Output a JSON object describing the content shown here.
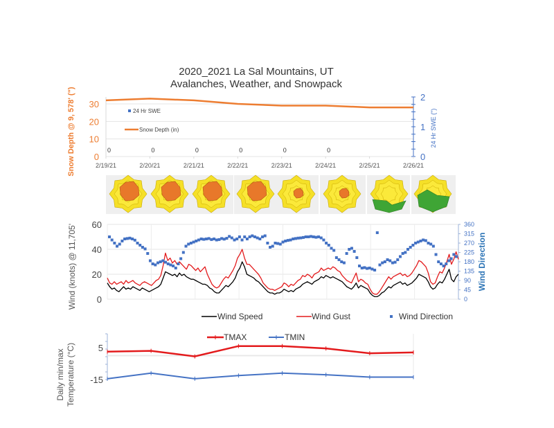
{
  "chart_data": [
    {
      "type": "line",
      "title": "2020_2021 La Sal Mountains, UT",
      "subtitle": "Avalanches, Weather, and Snowpack",
      "x": [
        "2/19/21",
        "2/20/21",
        "2/21/21",
        "2/22/21",
        "2/23/21",
        "2/24/21",
        "2/25/21",
        "2/26/21"
      ],
      "ylabel": "Snow Depth @ 9, 578' (\")",
      "y2label": "24 Hr SWE (\")",
      "ylim": [
        0,
        35
      ],
      "y2lim": [
        0,
        2
      ],
      "yticks": [
        0,
        10,
        20,
        30
      ],
      "y2ticks": [
        0,
        1,
        2
      ],
      "legend": [
        "24 Hr SWE",
        "Snow Depth (in)"
      ],
      "legend_position": "top-left",
      "series": [
        {
          "name": "Snow Depth (in)",
          "axis": "left",
          "color": "#ED7D31",
          "values": [
            32,
            33,
            32,
            30,
            29,
            29,
            28,
            28
          ]
        },
        {
          "name": "24 Hr SWE",
          "axis": "right",
          "color": "#4472C4",
          "values": [
            0,
            0,
            0,
            0,
            0,
            0,
            null,
            null
          ],
          "labels": [
            "0",
            "0",
            "0",
            "0",
            "0",
            "0"
          ]
        }
      ]
    },
    {
      "type": "image-strip",
      "title": "Avalanche danger roses",
      "roses": [
        {
          "date": "2/19/21",
          "level": "considerable"
        },
        {
          "date": "2/20/21",
          "level": "considerable"
        },
        {
          "date": "2/21/21",
          "level": "considerable"
        },
        {
          "date": "2/22/21",
          "level": "considerable"
        },
        {
          "date": "2/23/21",
          "level": "considerable-limited"
        },
        {
          "date": "2/24/21",
          "level": "considerable-limited"
        },
        {
          "date": "2/25/21",
          "level": "moderate-low"
        },
        {
          "date": "2/26/21",
          "level": "moderate-low"
        }
      ]
    },
    {
      "type": "line",
      "ylabel": "Wind (knots) @ 11,705'",
      "y2label": "Wind Direction",
      "ylim": [
        0,
        60
      ],
      "yticks": [
        0,
        20,
        40,
        60
      ],
      "y2lim": [
        0,
        360
      ],
      "y2ticks": [
        0,
        45,
        90,
        135,
        180,
        225,
        270,
        315,
        360
      ],
      "legend": [
        "Wind Speed",
        "Wind Gust",
        "Wind Direction"
      ],
      "legend_position": "bottom",
      "x_days": 8,
      "series": [
        {
          "name": "Wind Speed",
          "color": "#000000",
          "values": [
            13,
            10,
            8,
            9,
            7,
            6,
            8,
            10,
            8,
            9,
            8,
            10,
            9,
            8,
            7,
            9,
            8,
            7,
            6,
            7,
            8,
            9,
            10,
            12,
            17,
            22,
            21,
            20,
            19,
            20,
            18,
            21,
            19,
            20,
            18,
            17,
            16,
            16,
            15,
            14,
            13,
            12,
            12,
            11,
            9,
            8,
            6,
            5,
            5,
            7,
            9,
            11,
            10,
            12,
            14,
            17,
            22,
            25,
            30,
            26,
            20,
            19,
            18,
            17,
            15,
            14,
            12,
            10,
            8,
            6,
            5,
            5,
            4,
            5,
            5,
            6,
            8,
            7,
            6,
            7,
            6,
            8,
            9,
            10,
            12,
            13,
            14,
            13,
            12,
            14,
            15,
            16,
            18,
            17,
            19,
            18,
            17,
            18,
            17,
            16,
            15,
            14,
            12,
            10,
            9,
            8,
            10,
            13,
            9,
            11,
            10,
            9,
            8,
            5,
            3,
            2,
            2,
            3,
            5,
            6,
            8,
            10,
            9,
            11,
            12,
            13,
            14,
            12,
            13,
            11,
            12,
            13,
            15,
            17,
            20,
            19,
            18,
            17,
            14,
            10,
            8,
            9,
            12,
            14,
            13,
            16,
            20,
            24,
            16,
            14,
            18,
            20
          ]
        },
        {
          "name": "Wind Gust",
          "color": "#E31A1C",
          "values": [
            17,
            13,
            12,
            14,
            12,
            13,
            14,
            12,
            15,
            13,
            14,
            15,
            13,
            12,
            11,
            13,
            14,
            13,
            12,
            11,
            13,
            15,
            16,
            19,
            27,
            37,
            31,
            33,
            29,
            31,
            28,
            30,
            28,
            26,
            24,
            28,
            27,
            25,
            23,
            25,
            22,
            24,
            26,
            20,
            16,
            12,
            10,
            9,
            10,
            13,
            16,
            18,
            17,
            20,
            23,
            27,
            33,
            36,
            40,
            33,
            28,
            28,
            26,
            24,
            22,
            20,
            17,
            13,
            11,
            9,
            8,
            8,
            7,
            8,
            9,
            10,
            13,
            12,
            10,
            12,
            11,
            13,
            15,
            16,
            19,
            18,
            20,
            19,
            17,
            20,
            21,
            22,
            25,
            23,
            24,
            25,
            24,
            26,
            25,
            23,
            22,
            19,
            17,
            15,
            14,
            13,
            17,
            21,
            14,
            16,
            15,
            13,
            12,
            8,
            5,
            4,
            4,
            6,
            9,
            12,
            15,
            18,
            16,
            18,
            19,
            20,
            21,
            19,
            20,
            18,
            19,
            21,
            24,
            27,
            31,
            30,
            28,
            26,
            21,
            14,
            12,
            13,
            18,
            22,
            21,
            25,
            30,
            36,
            28,
            32,
            38,
            32
          ]
        },
        {
          "name": "Wind Direction",
          "color": "#4472C4",
          "axis": "right",
          "values": [
            300,
            285,
            270,
            255,
            265,
            280,
            290,
            292,
            294,
            290,
            284,
            270,
            260,
            250,
            242,
            220,
            185,
            170,
            165,
            175,
            180,
            185,
            178,
            170,
            165,
            160,
            150,
            170,
            195,
            225,
            255,
            265,
            270,
            275,
            280,
            285,
            290,
            288,
            290,
            292,
            287,
            290,
            285,
            287,
            292,
            289,
            293,
            302,
            295,
            285,
            290,
            300,
            285,
            300,
            290,
            300,
            305,
            300,
            295,
            290,
            300,
            305,
            270,
            250,
            255,
            270,
            268,
            265,
            275,
            280,
            283,
            285,
            290,
            292,
            294,
            295,
            297,
            300,
            300,
            302,
            300,
            298,
            300,
            295,
            285,
            270,
            260,
            245,
            235,
            200,
            190,
            180,
            175,
            220,
            240,
            245,
            230,
            200,
            160,
            150,
            152,
            148,
            150,
            145,
            140,
            320,
            165,
            175,
            180,
            190,
            185,
            175,
            178,
            190,
            205,
            220,
            225,
            240,
            250,
            260,
            270,
            275,
            280,
            285,
            282,
            270,
            265,
            255,
            215,
            180,
            170,
            160,
            170,
            185,
            195,
            215,
            205
          ]
        }
      ]
    },
    {
      "type": "line",
      "ylabel": "Daily min/max Temperature (°C)",
      "ylim": [
        -15,
        10
      ],
      "yticks": [
        -15,
        5
      ],
      "x": [
        "2/19/21",
        "2/20/21",
        "2/21/21",
        "2/22/21",
        "2/23/21",
        "2/24/21",
        "2/25/21",
        "2/26/21"
      ],
      "legend": [
        "TMAX",
        "TMIN"
      ],
      "legend_position": "top",
      "series": [
        {
          "name": "TMAX",
          "color": "#E31A1C",
          "values": [
            2.5,
            3,
            -0.5,
            6,
            6,
            4.5,
            1.5,
            2
          ]
        },
        {
          "name": "TMIN",
          "color": "#4472C4",
          "values": [
            -14.5,
            -11,
            -14.5,
            -12.5,
            -11,
            -12,
            -13.5,
            -13.5
          ]
        }
      ]
    }
  ]
}
